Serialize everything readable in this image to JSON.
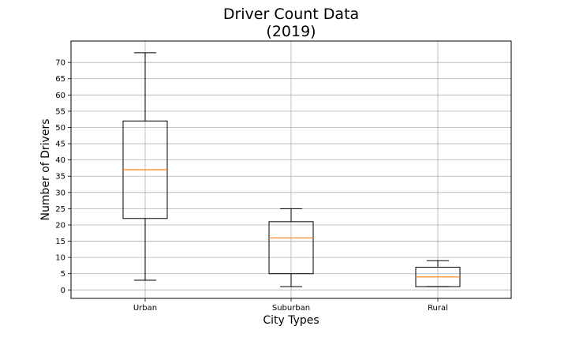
{
  "chart_data": {
    "type": "box",
    "title": "Driver Count Data\n(2019)",
    "title_lines": [
      "Driver Count Data",
      "(2019)"
    ],
    "xlabel": "City Types",
    "ylabel": "Number of Drivers",
    "categories": [
      "Urban",
      "Suburban",
      "Rural"
    ],
    "boxes": [
      {
        "name": "Urban",
        "whisker_low": 3,
        "q1": 22,
        "median": 37,
        "q3": 52,
        "whisker_high": 73
      },
      {
        "name": "Suburban",
        "whisker_low": 1,
        "q1": 5,
        "median": 16,
        "q3": 21,
        "whisker_high": 25
      },
      {
        "name": "Rural",
        "whisker_low": 1,
        "q1": 1,
        "median": 4,
        "q3": 7,
        "whisker_high": 9
      }
    ],
    "yticks": [
      0,
      5,
      10,
      15,
      20,
      25,
      30,
      35,
      40,
      45,
      50,
      55,
      60,
      65,
      70
    ],
    "ylim": [
      -2.6,
      76.6
    ],
    "grid": true,
    "colors": {
      "box": "#000000",
      "median": "#ff7f0e",
      "grid": "#b0b0b0"
    }
  }
}
